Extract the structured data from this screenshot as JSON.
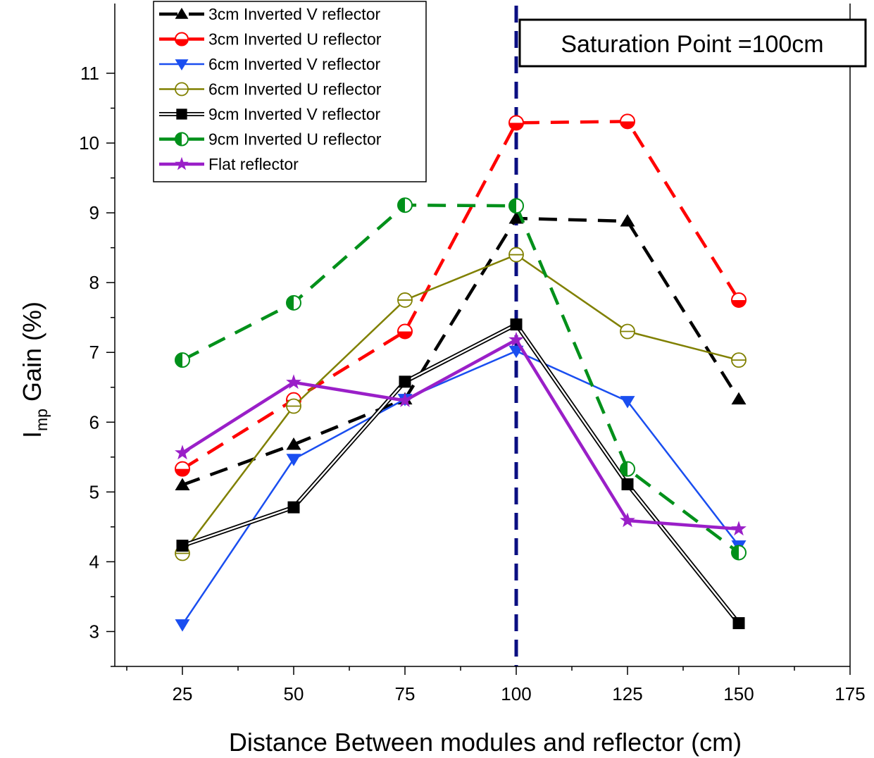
{
  "chart_data": {
    "type": "line",
    "xlabel": "Distance Between modules and reflector (cm)",
    "ylabel_main": "I",
    "ylabel_sub": "mp",
    "ylabel_rest": " Gain (%)",
    "xlim": [
      12.5,
      175
    ],
    "ylim": [
      2.5,
      11
    ],
    "xticks": [
      25,
      50,
      75,
      100,
      125,
      150,
      175
    ],
    "yticks": [
      3,
      4,
      5,
      6,
      7,
      8,
      9,
      10,
      11
    ],
    "x": [
      25,
      50,
      75,
      100,
      125,
      150
    ],
    "legend_position": "top-left",
    "annotation": "Saturation Point =100cm",
    "saturation_x": 100,
    "colors": {
      "saturation_line": "#0a0f82"
    },
    "series": [
      {
        "name": "3cm Inverted V reflector",
        "values": [
          5.1,
          5.68,
          6.33,
          8.92,
          8.88,
          6.33
        ],
        "color": "#000000",
        "dash": "dashed",
        "marker": "triangle-up"
      },
      {
        "name": "3cm Inverted U reflector",
        "values": [
          5.33,
          6.32,
          7.3,
          10.29,
          10.31,
          7.75
        ],
        "color": "#ff0000",
        "dash": "dashed",
        "marker": "circle-half-bottom"
      },
      {
        "name": "6cm Inverted V reflector",
        "values": [
          3.1,
          5.47,
          6.33,
          7.02,
          6.3,
          4.23
        ],
        "color": "#1a4ef0",
        "dash": "solid",
        "marker": "triangle-down"
      },
      {
        "name": "6cm Inverted U reflector",
        "values": [
          4.12,
          6.23,
          7.75,
          8.4,
          7.3,
          6.89
        ],
        "color": "#808000",
        "dash": "solid",
        "marker": "circle-line"
      },
      {
        "name": "9cm Inverted V reflector",
        "values": [
          4.23,
          4.78,
          6.58,
          7.4,
          5.11,
          3.12
        ],
        "color": "#000000",
        "dash": "double",
        "marker": "square"
      },
      {
        "name": "9cm Inverted U reflector",
        "values": [
          6.89,
          7.71,
          9.11,
          9.1,
          5.33,
          4.13
        ],
        "color": "#00901a",
        "dash": "dashed",
        "marker": "circle-half-left"
      },
      {
        "name": "Flat reflector",
        "values": [
          5.56,
          6.57,
          6.31,
          7.18,
          4.59,
          4.47
        ],
        "color": "#9a1fc8",
        "dash": "solid",
        "marker": "star"
      }
    ]
  }
}
